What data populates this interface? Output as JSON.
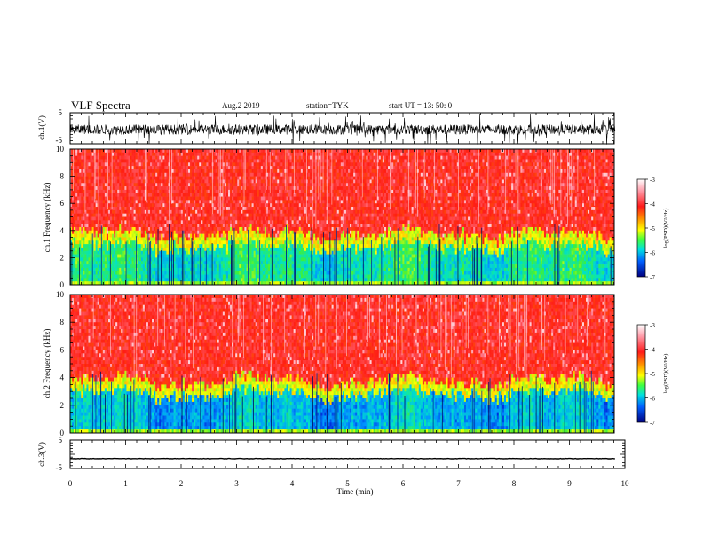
{
  "header": {
    "title": "VLF Spectra",
    "date_line": "Aug.2   2019",
    "station": "station=TYK",
    "start": "start  UT =   13: 50: 0"
  },
  "colors": {
    "spectrogram_high": "#ff2a1a",
    "spectrogram_mid": "#ffe000",
    "spectrogram_low": "#12c8b0",
    "spectrogram_min": "#0010a0",
    "axis": "#000000"
  },
  "chart_data": [
    {
      "type": "line",
      "ylabel": "ch.1(V)",
      "ylim": [
        -5,
        5
      ],
      "yticks": [
        "5",
        "-5"
      ],
      "xlim": [
        0,
        10
      ],
      "series_style": "dense noisy waveform, mostly within about ±2 V with spikes to ±5 V"
    },
    {
      "type": "heatmap",
      "ylabel": "ch.1  Frequency (kHz)",
      "ylim": [
        0,
        10
      ],
      "yticks": [
        "0",
        "2",
        "4",
        "6",
        "8",
        "10"
      ],
      "xlim": [
        0,
        10
      ],
      "colorbar": {
        "label": "log(PSD)(V²/Hz)",
        "range": [
          -7,
          -3
        ],
        "ticks": [
          "-3",
          "-4",
          "-5",
          "-6",
          "-7"
        ]
      }
    },
    {
      "type": "heatmap",
      "ylabel": "ch.2  Frequency (kHz)",
      "ylim": [
        0,
        10
      ],
      "yticks": [
        "0",
        "2",
        "4",
        "6",
        "8",
        "10"
      ],
      "xlim": [
        0,
        10
      ],
      "colorbar": {
        "label": "log(PSD)(V²/Hz)",
        "range": [
          -7,
          -3
        ],
        "ticks": [
          "-3",
          "-4",
          "-5",
          "-6",
          "-7"
        ]
      }
    },
    {
      "type": "line",
      "ylabel": "ch.3(V)",
      "ylim": [
        -5,
        5
      ],
      "yticks": [
        "5",
        "-5"
      ],
      "xlim": [
        0,
        10
      ],
      "series_style": "near-constant trace around -1.5 V"
    }
  ],
  "x_axis": {
    "label": "Time  (min)",
    "ticks": [
      "0",
      "1",
      "2",
      "3",
      "4",
      "5",
      "6",
      "7",
      "8",
      "9",
      "10"
    ]
  },
  "data_end_min": 9.82
}
